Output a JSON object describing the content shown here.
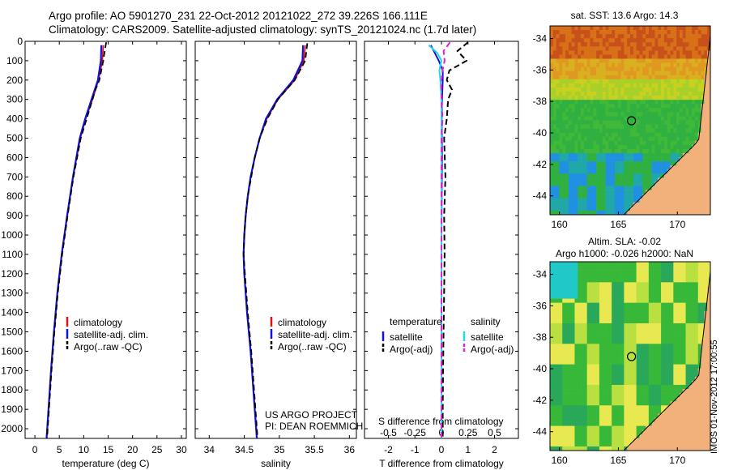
{
  "header": {
    "line1": "Argo profile: AO 5901270_231 22-Oct-2012 20121022_272 39.226S 166.111E",
    "line2": "Climatology: CARS2009. Satellite-adjusted climatology: synTS_20121024.nc (1.7d later)"
  },
  "side_label": "IMOS 01-Nov-2012 17:00:55",
  "colors": {
    "climatology": "#e01010",
    "satellite": "#1010e0",
    "argo": "#000000",
    "sal_satellite": "#20d8e8",
    "sal_argo": "#e020d0"
  },
  "chart_data": [
    {
      "type": "line",
      "id": "temperature",
      "xlabel": "temperature (deg C)",
      "ylabel": "",
      "xlim": [
        -2,
        31
      ],
      "ylim": [
        2050,
        0
      ],
      "xticks": [
        0,
        5,
        10,
        15,
        20,
        25,
        30
      ],
      "yticks": [
        0,
        100,
        200,
        300,
        400,
        500,
        600,
        700,
        800,
        900,
        1000,
        1100,
        1200,
        1300,
        1400,
        1500,
        1600,
        1700,
        1800,
        1900,
        2000
      ],
      "legend": [
        "climatology",
        "satellite-adj. clim.",
        "Argo(..raw -QC)"
      ],
      "series": [
        {
          "name": "climatology",
          "y": [
            20,
            100,
            200,
            300,
            400,
            500,
            700,
            900,
            1100,
            1300,
            1500,
            1700,
            1900,
            2050
          ],
          "x": [
            14.0,
            13.8,
            13.0,
            11.8,
            10.4,
            9.3,
            7.8,
            6.6,
            5.5,
            4.6,
            3.9,
            3.3,
            2.8,
            2.4
          ]
        },
        {
          "name": "satellite-adj. clim.",
          "y": [
            20,
            100,
            200,
            300,
            400,
            500,
            700,
            900,
            1100,
            1300,
            1500,
            1700,
            1900,
            2050
          ],
          "x": [
            13.6,
            13.5,
            12.9,
            11.6,
            10.3,
            9.2,
            7.8,
            6.6,
            5.5,
            4.6,
            3.9,
            3.3,
            2.8,
            2.4
          ]
        },
        {
          "name": "Argo(..raw -QC)",
          "y": [
            5,
            50,
            100,
            200,
            250,
            300,
            400,
            500,
            700,
            900,
            1100,
            1300,
            1500,
            1700,
            1900,
            2050
          ],
          "x": [
            14.6,
            14.3,
            14.0,
            13.2,
            12.4,
            11.8,
            10.6,
            9.4,
            7.9,
            6.7,
            5.6,
            4.7,
            4.0,
            3.4,
            2.9,
            2.5
          ]
        }
      ]
    },
    {
      "type": "line",
      "id": "salinity",
      "xlabel": "salinity",
      "xlim": [
        33.8,
        36.1
      ],
      "ylim": [
        2050,
        0
      ],
      "xticks": [
        34,
        34.5,
        35,
        35.5,
        36
      ],
      "legend": [
        "climatology",
        "satellite-adj. clim.",
        "Argo(..raw -QC)"
      ],
      "annotation": [
        "US ARGO PROJECT",
        "PI: DEAN ROEMMICH"
      ],
      "series": [
        {
          "name": "climatology",
          "y": [
            20,
            100,
            200,
            300,
            400,
            500,
            600,
            700,
            800,
            900,
            1000,
            1100,
            1200,
            1400,
            1600,
            1800,
            2050
          ],
          "x": [
            35.37,
            35.35,
            35.22,
            34.98,
            34.82,
            34.72,
            34.65,
            34.59,
            34.55,
            34.52,
            34.5,
            34.49,
            34.5,
            34.54,
            34.59,
            34.63,
            34.68
          ]
        },
        {
          "name": "satellite-adj. clim.",
          "y": [
            20,
            100,
            200,
            300,
            400,
            500,
            600,
            700,
            800,
            900,
            1000,
            1100,
            1200,
            1400,
            1600,
            1800,
            2050
          ],
          "x": [
            35.34,
            35.33,
            35.2,
            34.97,
            34.81,
            34.72,
            34.65,
            34.59,
            34.55,
            34.52,
            34.5,
            34.49,
            34.5,
            34.54,
            34.59,
            34.63,
            34.68
          ]
        },
        {
          "name": "Argo(..raw -QC)",
          "y": [
            10,
            100,
            200,
            300,
            400,
            500,
            600,
            700,
            800,
            900,
            1000,
            1100,
            1200,
            1400,
            1600,
            1800,
            2050
          ],
          "x": [
            35.4,
            35.37,
            35.22,
            34.98,
            34.83,
            34.72,
            34.65,
            34.6,
            34.55,
            34.52,
            34.5,
            34.49,
            34.51,
            34.55,
            34.6,
            34.64,
            34.69
          ]
        }
      ]
    },
    {
      "type": "line",
      "id": "difference",
      "xlabel": "T difference from climatology",
      "xlabel2": "S difference from climatology",
      "xlim": [
        -2.9,
        2.9
      ],
      "xlim2": [
        -0.725,
        0.725
      ],
      "ylim": [
        2050,
        0
      ],
      "xticks": [
        -2,
        -1,
        0,
        1,
        2
      ],
      "xticks2": [
        -0.5,
        -0.25,
        0,
        0.25,
        0.5
      ],
      "legend_temperature": {
        "title": "temperature",
        "items": [
          "satellite",
          "Argo(-adj)"
        ]
      },
      "legend_salinity": {
        "title": "salinity",
        "items": [
          "satellite",
          "Argo(-adj)"
        ]
      },
      "series": [
        {
          "name": "temperature satellite",
          "axis": "T",
          "y": [
            20,
            60,
            100,
            150,
            200,
            300,
            400,
            600,
            800,
            1000,
            1500,
            2050
          ],
          "x": [
            -0.4,
            -0.25,
            -0.1,
            0.05,
            0.05,
            0.02,
            0.01,
            0.02,
            0.01,
            0.0,
            0.0,
            0.0
          ]
        },
        {
          "name": "temperature Argo(-adj)",
          "axis": "T",
          "y": [
            5,
            50,
            100,
            150,
            200,
            250,
            300,
            400,
            500,
            700,
            900,
            1100,
            1300,
            1500,
            1700,
            1900,
            2050
          ],
          "x": [
            1.0,
            0.6,
            0.95,
            0.3,
            0.2,
            0.4,
            0.25,
            0.2,
            0.1,
            0.15,
            0.1,
            0.12,
            0.1,
            0.08,
            0.06,
            0.05,
            0.05
          ]
        },
        {
          "name": "salinity satellite",
          "axis": "S",
          "y": [
            20,
            60,
            100,
            150,
            200,
            300,
            400,
            500,
            600,
            800,
            1000,
            1500,
            2050
          ],
          "x": [
            -0.12,
            -0.04,
            0.0,
            -0.02,
            -0.01,
            0.0,
            0.0,
            0.0,
            0.0,
            0.0,
            0.0,
            0.0,
            0.0
          ]
        },
        {
          "name": "salinity Argo(-adj)",
          "axis": "S",
          "y": [
            5,
            50,
            100,
            150,
            200,
            300,
            400,
            500,
            700,
            1000,
            1300,
            1600,
            1900,
            2050
          ],
          "x": [
            0.08,
            0.02,
            0.03,
            0.01,
            0.0,
            0.0,
            0.01,
            0.0,
            0.0,
            0.0,
            0.0,
            0.0,
            0.0,
            0.0
          ]
        }
      ]
    },
    {
      "type": "heatmap",
      "id": "sst-map",
      "title": "sat. SST: 13.6 Argo: 14.3",
      "xlim": [
        159.2,
        172.8
      ],
      "ylim": [
        -45.2,
        -33.2
      ],
      "xticks": [
        160,
        165,
        170
      ],
      "yticks": [
        -34,
        -36,
        -38,
        -40,
        -42,
        -44
      ],
      "marker": {
        "lon": 166.111,
        "lat": -39.226
      }
    },
    {
      "type": "heatmap",
      "id": "sla-map",
      "title": "Altim. SLA: -0.02",
      "subtitle": "Argo h1000: -0.026 h2000: NaN",
      "xlim": [
        159.2,
        172.8
      ],
      "ylim": [
        -45.2,
        -33.2
      ],
      "xticks": [
        160,
        165,
        170
      ],
      "yticks": [
        -34,
        -36,
        -38,
        -40,
        -42,
        -44
      ],
      "marker": {
        "lon": 166.111,
        "lat": -39.226
      }
    }
  ]
}
